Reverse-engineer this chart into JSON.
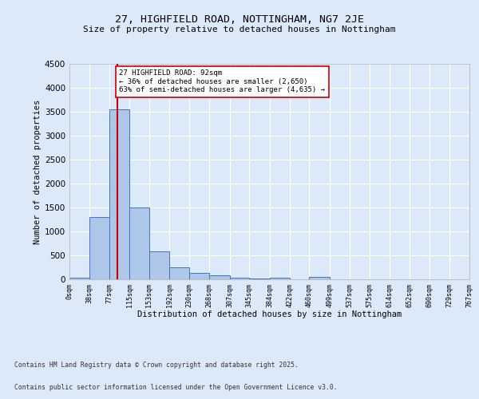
{
  "title_line1": "27, HIGHFIELD ROAD, NOTTINGHAM, NG7 2JE",
  "title_line2": "Size of property relative to detached houses in Nottingham",
  "xlabel": "Distribution of detached houses by size in Nottingham",
  "ylabel": "Number of detached properties",
  "bar_edges": [
    0,
    38,
    77,
    115,
    153,
    192,
    230,
    268,
    307,
    345,
    384,
    422,
    460,
    499,
    537,
    575,
    614,
    652,
    690,
    729,
    767
  ],
  "bar_heights": [
    30,
    1300,
    3550,
    1500,
    590,
    250,
    140,
    90,
    40,
    15,
    30,
    5,
    50,
    0,
    0,
    0,
    0,
    0,
    0,
    0
  ],
  "bar_color": "#aec6e8",
  "bar_edge_color": "#4472c4",
  "vline_x": 92,
  "vline_color": "#cc0000",
  "annotation_text": "27 HIGHFIELD ROAD: 92sqm\n← 36% of detached houses are smaller (2,650)\n63% of semi-detached houses are larger (4,635) →",
  "annotation_box_color": "#ffffff",
  "annotation_box_edge": "#cc0000",
  "ylim": [
    0,
    4500
  ],
  "yticks": [
    0,
    500,
    1000,
    1500,
    2000,
    2500,
    3000,
    3500,
    4000,
    4500
  ],
  "tick_labels": [
    "0sqm",
    "38sqm",
    "77sqm",
    "115sqm",
    "153sqm",
    "192sqm",
    "230sqm",
    "268sqm",
    "307sqm",
    "345sqm",
    "384sqm",
    "422sqm",
    "460sqm",
    "499sqm",
    "537sqm",
    "575sqm",
    "614sqm",
    "652sqm",
    "690sqm",
    "729sqm",
    "767sqm"
  ],
  "bg_color": "#dce9f8",
  "plot_bg_color": "#dce9f8",
  "grid_color": "#ffffff",
  "footer_line1": "Contains HM Land Registry data © Crown copyright and database right 2025.",
  "footer_line2": "Contains public sector information licensed under the Open Government Licence v3.0."
}
